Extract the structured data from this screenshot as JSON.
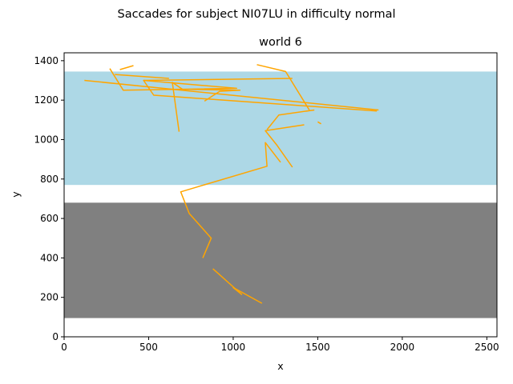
{
  "figure": {
    "suptitle": "Saccades for subject NI07LU in difficulty normal"
  },
  "chart_data": {
    "type": "line",
    "title": "world 6",
    "xlabel": "x",
    "ylabel": "y",
    "xlim": [
      0,
      2560
    ],
    "ylim": [
      0,
      1440
    ],
    "xticks": [
      0,
      500,
      1000,
      1500,
      2000,
      2500
    ],
    "yticks": [
      0,
      200,
      400,
      600,
      800,
      1000,
      1200,
      1400
    ],
    "grid": false,
    "legend": "none",
    "regions": [
      {
        "name": "lower band",
        "y0": 95,
        "y1": 680,
        "color": "#808080"
      },
      {
        "name": "upper band",
        "y0": 770,
        "y1": 1345,
        "color": "#add8e6"
      }
    ],
    "series": [
      {
        "color": "#ffa500",
        "segments": [
          [
            [
              1170,
              170
            ],
            [
              1000,
              250
            ],
            [
              1050,
              215
            ],
            [
              880,
              345
            ]
          ],
          [
            [
              820,
              400
            ],
            [
              870,
              500
            ],
            [
              740,
              625
            ],
            [
              690,
              735
            ],
            [
              1200,
              865
            ],
            [
              1190,
              985
            ],
            [
              1280,
              885
            ]
          ],
          [
            [
              1350,
              860
            ],
            [
              1260,
              970
            ],
            [
              1190,
              1045
            ],
            [
              1420,
              1075
            ]
          ],
          [
            [
              1500,
              1090
            ],
            [
              1520,
              1080
            ]
          ],
          [
            [
              1200,
              1050
            ],
            [
              1270,
              1125
            ],
            [
              1480,
              1150
            ]
          ],
          [
            [
              1450,
              1150
            ],
            [
              1310,
              1345
            ],
            [
              1140,
              1380
            ]
          ],
          [
            [
              1350,
              1310
            ],
            [
              470,
              1300
            ]
          ],
          [
            [
              1850,
              1145
            ],
            [
              530,
              1225
            ],
            [
              470,
              1300
            ],
            [
              1020,
              1260
            ],
            [
              350,
              1250
            ],
            [
              270,
              1360
            ]
          ],
          [
            [
              330,
              1355
            ],
            [
              410,
              1375
            ]
          ],
          [
            [
              300,
              1330
            ],
            [
              620,
              1310
            ]
          ],
          [
            [
              680,
              1040
            ],
            [
              640,
              1290
            ],
            [
              700,
              1255
            ],
            [
              1040,
              1250
            ],
            [
              920,
              1245
            ],
            [
              830,
              1195
            ]
          ],
          [
            [
              120,
              1300
            ],
            [
              1860,
              1150
            ]
          ]
        ]
      }
    ]
  }
}
